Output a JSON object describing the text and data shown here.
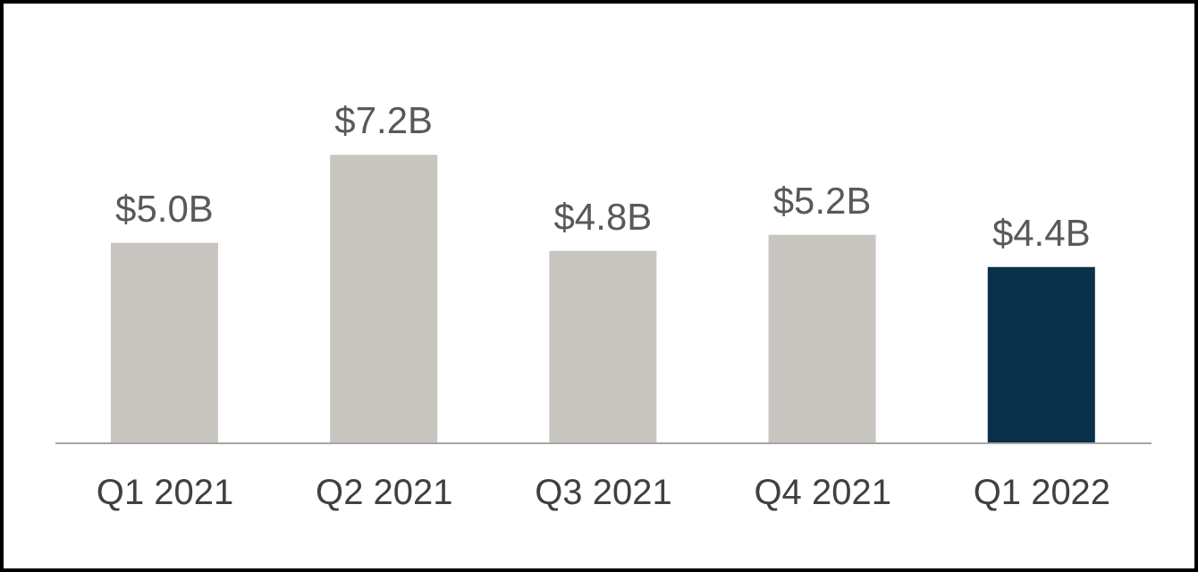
{
  "chart_data": {
    "type": "bar",
    "categories": [
      "Q1 2021",
      "Q2 2021",
      "Q3 2021",
      "Q4 2021",
      "Q1 2022"
    ],
    "values": [
      5.0,
      7.2,
      4.8,
      5.2,
      4.4
    ],
    "colors": [
      "#c9c6c1",
      "#c9c6c1",
      "#c9c6c1",
      "#c9c6c1",
      "#0b3049"
    ],
    "value_labels": [
      "$5.0B",
      "$7.2B",
      "$4.8B",
      "$5.2B",
      "$4.4B"
    ],
    "legend": false,
    "grid": false
  }
}
